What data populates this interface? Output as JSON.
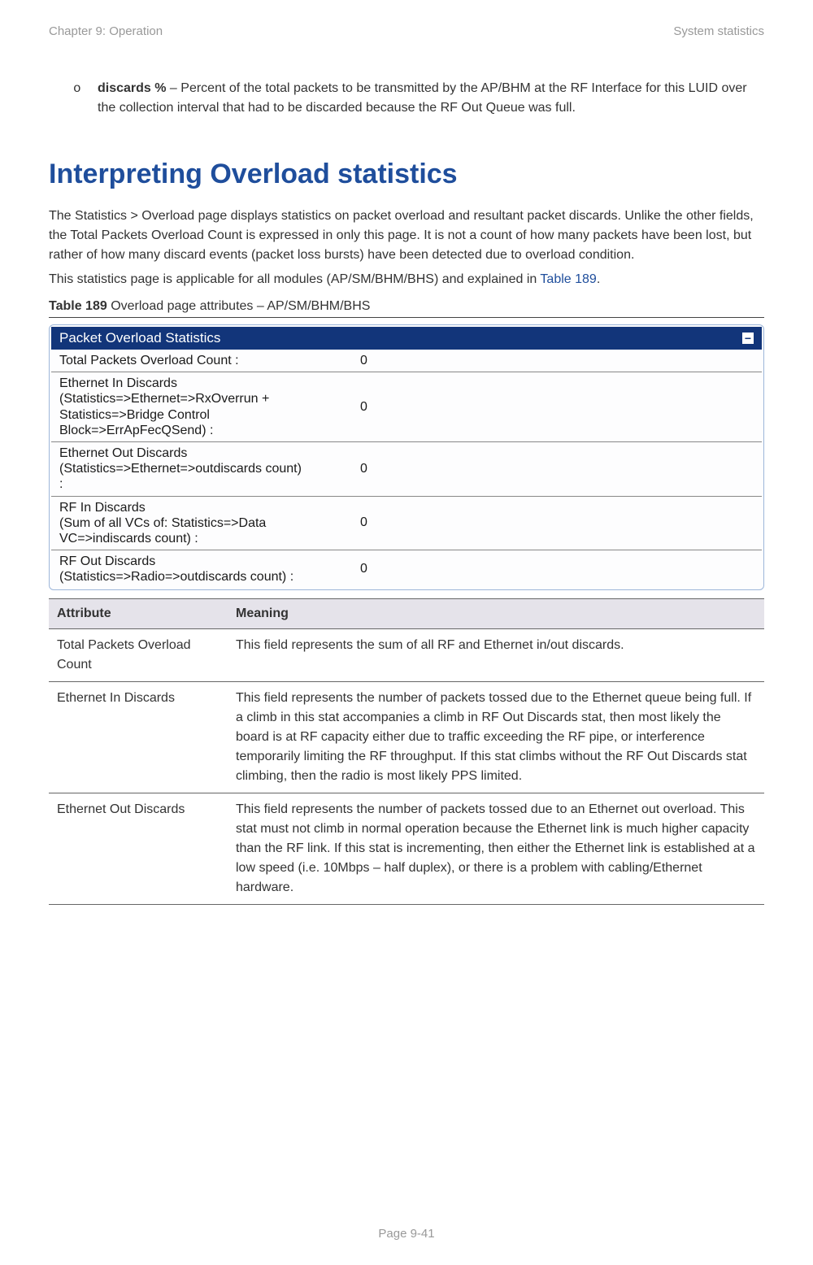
{
  "header": {
    "left": "Chapter 9:  Operation",
    "right": "System statistics"
  },
  "bullet": {
    "marker": "o",
    "bold": "discards %",
    "rest": " – Percent of the total packets to be transmitted by the AP/BHM at the RF Interface for this LUID over the collection interval that had to be discarded because the RF Out Queue was full."
  },
  "section_title": "Interpreting Overload statistics",
  "para1": "The Statistics > Overload page displays statistics on packet overload and resultant packet discards. Unlike the other fields, the Total Packets Overload Count is expressed in only this page. It is not a count of how many packets have been lost, but rather of how many discard events (packet loss bursts) have been detected due to overload condition.",
  "para2_pre": "This statistics page is applicable for all modules (AP/SM/BHM/BHS) and explained in ",
  "para2_link": "Table 189",
  "para2_post": ".",
  "table_caption_bold": "Table 189",
  "table_caption_rest": " Overload page attributes – AP/SM/BHM/BHS",
  "panel": {
    "title": "Packet Overload Statistics",
    "title_bg": "#12357a",
    "title_color": "#ffffff",
    "border_color": "#9db6d9",
    "rows": [
      {
        "label": "Total Packets Overload Count :",
        "value": "0"
      },
      {
        "label": "Ethernet In Discards\n(Statistics=>Ethernet=>RxOverrun +\nStatistics=>Bridge Control\nBlock=>ErrApFecQSend) :",
        "value": "0"
      },
      {
        "label": "Ethernet Out Discards\n(Statistics=>Ethernet=>outdiscards count)\n:",
        "value": "0"
      },
      {
        "label": "RF In Discards\n(Sum of all VCs of: Statistics=>Data\nVC=>indiscards count) :",
        "value": "0"
      },
      {
        "label": "RF Out Discards\n(Statistics=>Radio=>outdiscards count) :",
        "value": "0"
      }
    ]
  },
  "attr_table": {
    "headers": [
      "Attribute",
      "Meaning"
    ],
    "header_bg": "#e5e3ea",
    "rows": [
      {
        "attr": "Total Packets Overload Count",
        "meaning": "This field represents the sum of all RF and Ethernet in/out discards."
      },
      {
        "attr": "Ethernet In Discards",
        "meaning": "This field represents the number of packets tossed due to the Ethernet queue being full. If a climb in this stat accompanies a climb in RF Out Discards stat, then most likely the board is at RF capacity either due to traffic exceeding the RF pipe, or interference temporarily limiting the RF throughput. If this stat climbs without the RF Out Discards stat climbing, then the radio is most likely PPS limited."
      },
      {
        "attr": "Ethernet Out Discards",
        "meaning": "This field represents the number of packets tossed due to an Ethernet out overload. This stat must not climb in normal operation because the Ethernet link is much higher capacity than the RF link. If this stat is incrementing, then either the Ethernet link is established at a low speed (i.e. 10Mbps – half duplex), or there is a problem with cabling/Ethernet hardware."
      }
    ]
  },
  "footer": "Page 9-41"
}
